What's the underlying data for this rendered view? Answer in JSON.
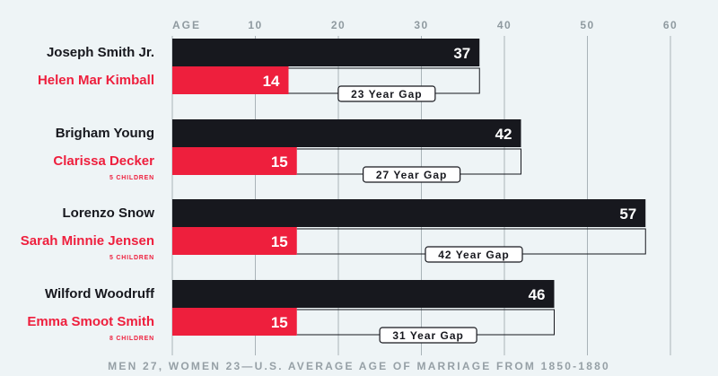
{
  "chart_data": {
    "type": "bar",
    "xaxis_label": "AGE",
    "ticks": [
      10,
      20,
      30,
      40,
      50,
      60
    ],
    "xlim": [
      0,
      60
    ],
    "gap_suffix": "Year Gap",
    "pairs": [
      {
        "man": "Joseph Smith Jr.",
        "man_age": 37,
        "woman": "Helen Mar Kimball",
        "woman_age": 14,
        "children": "",
        "gap": 23
      },
      {
        "man": "Brigham Young",
        "man_age": 42,
        "woman": "Clarissa Decker",
        "woman_age": 15,
        "children": "5 CHILDREN",
        "gap": 27
      },
      {
        "man": "Lorenzo Snow",
        "man_age": 57,
        "woman": "Sarah Minnie Jensen",
        "woman_age": 15,
        "children": "5 CHILDREN",
        "gap": 42
      },
      {
        "man": "Wilford Woodruff",
        "man_age": 46,
        "woman": "Emma Smoot Smith",
        "woman_age": 15,
        "children": "8 CHILDREN",
        "gap": 31
      }
    ],
    "footer": "MEN 27, WOMEN 23—U.S. AVERAGE AGE OF MARRIAGE FROM 1850-1880",
    "colors": {
      "man": "#17181e",
      "woman": "#ee1f3d",
      "grid": "#a9b3b8",
      "axis_text": "#8f9aa0",
      "footer": "#96a0a6",
      "background": "#eef4f6"
    }
  }
}
